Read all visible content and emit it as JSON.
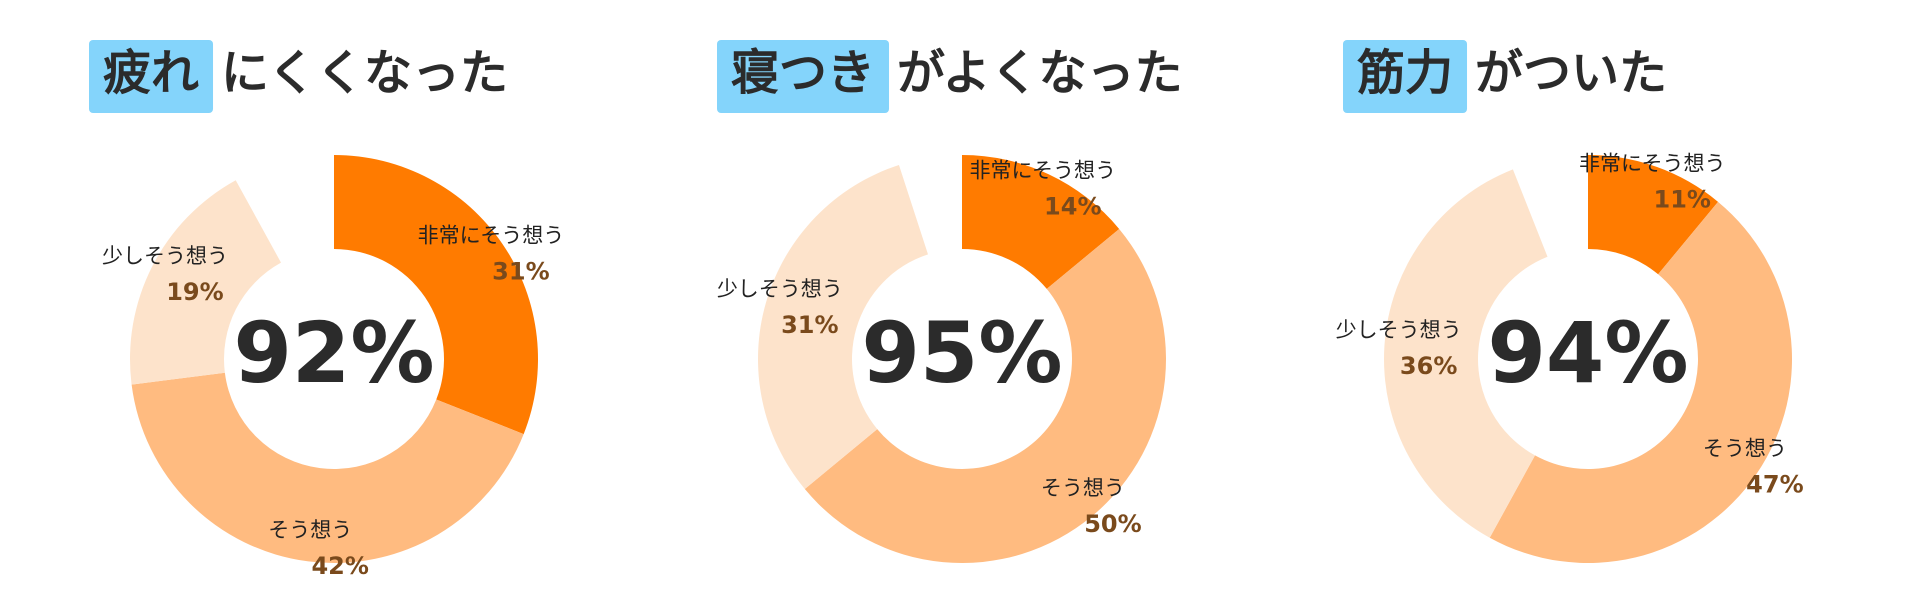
{
  "chart_data": [
    {
      "type": "donut",
      "title_highlight": "疲れ",
      "title": "にくくなった",
      "center_label": "92%",
      "categories": [
        "非常にそう想う",
        "そう想う",
        "少しそう想う"
      ],
      "values": [
        31,
        42,
        19
      ],
      "value_labels": [
        "31%",
        "42%",
        "19%"
      ],
      "colors": [
        "#ff7b00",
        "#ffbb80",
        "#fde3cb"
      ]
    },
    {
      "type": "donut",
      "title_highlight": "寝つき",
      "title": "がよくなった",
      "center_label": "95%",
      "categories": [
        "非常にそう想う",
        "そう想う",
        "少しそう想う"
      ],
      "values": [
        14,
        50,
        31
      ],
      "value_labels": [
        "14%",
        "50%",
        "31%"
      ],
      "colors": [
        "#ff7b00",
        "#ffbb80",
        "#fde3cb"
      ]
    },
    {
      "type": "donut",
      "title_highlight": "筋力",
      "title": "がついた",
      "center_label": "94%",
      "categories": [
        "非常にそう想う",
        "そう想う",
        "少しそう想う"
      ],
      "values": [
        11,
        47,
        36
      ],
      "value_labels": [
        "11%",
        "47%",
        "36%"
      ],
      "colors": [
        "#ff7b00",
        "#ffbb80",
        "#fde3cb"
      ]
    }
  ]
}
